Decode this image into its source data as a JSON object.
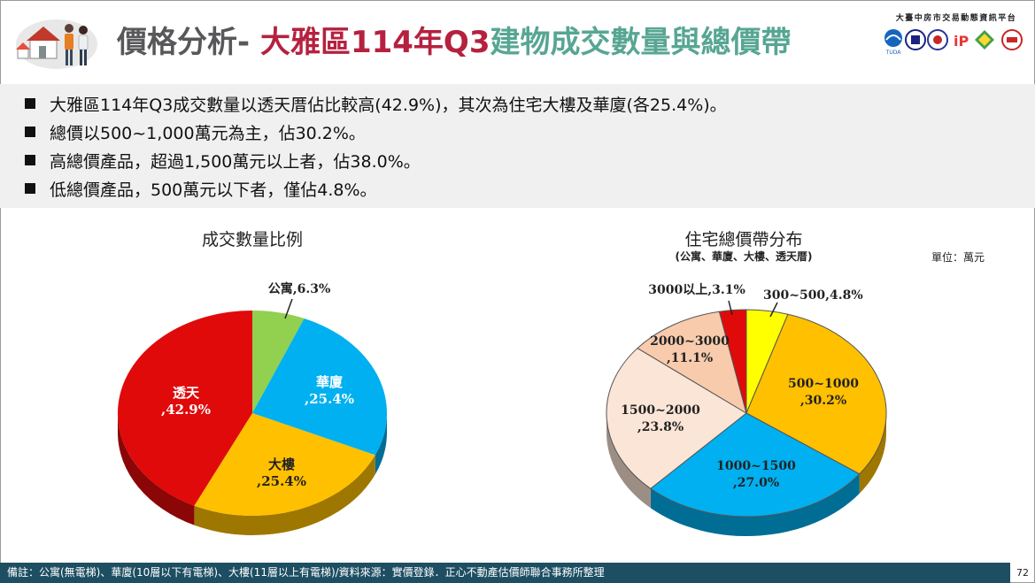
{
  "header": {
    "title_part1": "價格分析- ",
    "title_part2": "大雅區114年Q3",
    "title_part3": "建物成交數量與總價帶",
    "org_name": "大臺中房市交易動態資訊平台",
    "logo_icons": [
      "tuda-logo",
      "building-logo",
      "seal-logo",
      "ip-logo",
      "diamond-logo",
      "shield-logo"
    ],
    "logo_caption": "TUDA"
  },
  "bullets": [
    "大雅區114年Q3成交數量以透天厝佔比較高(42.9%)，其次為住宅大樓及華廈(各25.4%)。",
    "總價以500~1,000萬元為主，佔30.2%。",
    "高總價產品，超過1,500萬元以上者，佔38.0%。",
    "低總價產品，500萬元以下者，僅佔4.8%。"
  ],
  "charts": {
    "left": {
      "title": "成交數量比例"
    },
    "right": {
      "title": "住宅總價帶分布",
      "subtitle": "(公寓、華廈、大樓、透天厝)",
      "unit": "單位：萬元"
    }
  },
  "chart_data": [
    {
      "type": "pie",
      "title": "成交數量比例",
      "slices": [
        {
          "label": "公寓",
          "value_label": ",6.3%",
          "value": 6.3,
          "color": "#92d050"
        },
        {
          "label": "華廈",
          "value_label": ",25.4%",
          "value": 25.4,
          "color": "#00b0f0"
        },
        {
          "label": "大樓",
          "value_label": ",25.4%",
          "value": 25.4,
          "color": "#ffc000"
        },
        {
          "label": "透天",
          "value_label": ",42.9%",
          "value": 42.9,
          "color": "#e00a0a"
        }
      ]
    },
    {
      "type": "pie",
      "title": "住宅總價帶分布",
      "subtitle": "(公寓、華廈、大樓、透天厝)",
      "unit": "單位：萬元",
      "slices": [
        {
          "label": "300~500",
          "value_label": ",4.8%",
          "value": 4.8,
          "color": "#ffff00"
        },
        {
          "label": "500~1000",
          "value_label": ",30.2%",
          "value": 30.2,
          "color": "#ffc000"
        },
        {
          "label": "1000~1500",
          "value_label": ",27.0%",
          "value": 27.0,
          "color": "#00b0f0"
        },
        {
          "label": "1500~2000",
          "value_label": ",23.8%",
          "value": 23.8,
          "color": "#fbe5d6"
        },
        {
          "label": "2000~3000",
          "value_label": ",11.1%",
          "value": 11.1,
          "color": "#f8cbad"
        },
        {
          "label": "3000以上",
          "value_label": ",3.1%",
          "value": 3.1,
          "color": "#e00a0a"
        }
      ]
    }
  ],
  "footer": {
    "note": "備註：公寓(無電梯)、華廈(10層以下有電梯)、大樓(11層以上有電梯)/資料來源：實價登錄．正心不動產估價師聯合事務所整理",
    "page_number": "72"
  }
}
